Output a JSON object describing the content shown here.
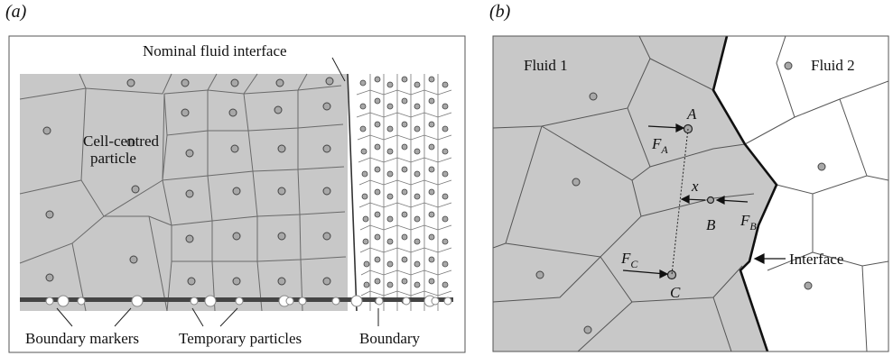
{
  "panel_a": {
    "letter": "(a)",
    "labels": {
      "interface": "Nominal fluid interface",
      "cell_particle": "Cell-centred particle",
      "boundary_markers": "Boundary markers",
      "temporary_particles": "Temporary particles",
      "boundary": "Boundary"
    }
  },
  "panel_b": {
    "letter": "(b)",
    "labels": {
      "fluid1": "Fluid 1",
      "fluid2": "Fluid 2",
      "interface": "Interface",
      "point_a": "A",
      "point_b": "B",
      "point_c": "C",
      "distance": "x",
      "force_a": "F",
      "force_a_sub": "A",
      "force_b": "F",
      "force_b_sub": "B",
      "force_c": "F",
      "force_c_sub": "C"
    }
  },
  "colors": {
    "fluid_grey": "#c8c8c8",
    "cell_lines": "#555555",
    "white_fluid": "#ffffff"
  }
}
